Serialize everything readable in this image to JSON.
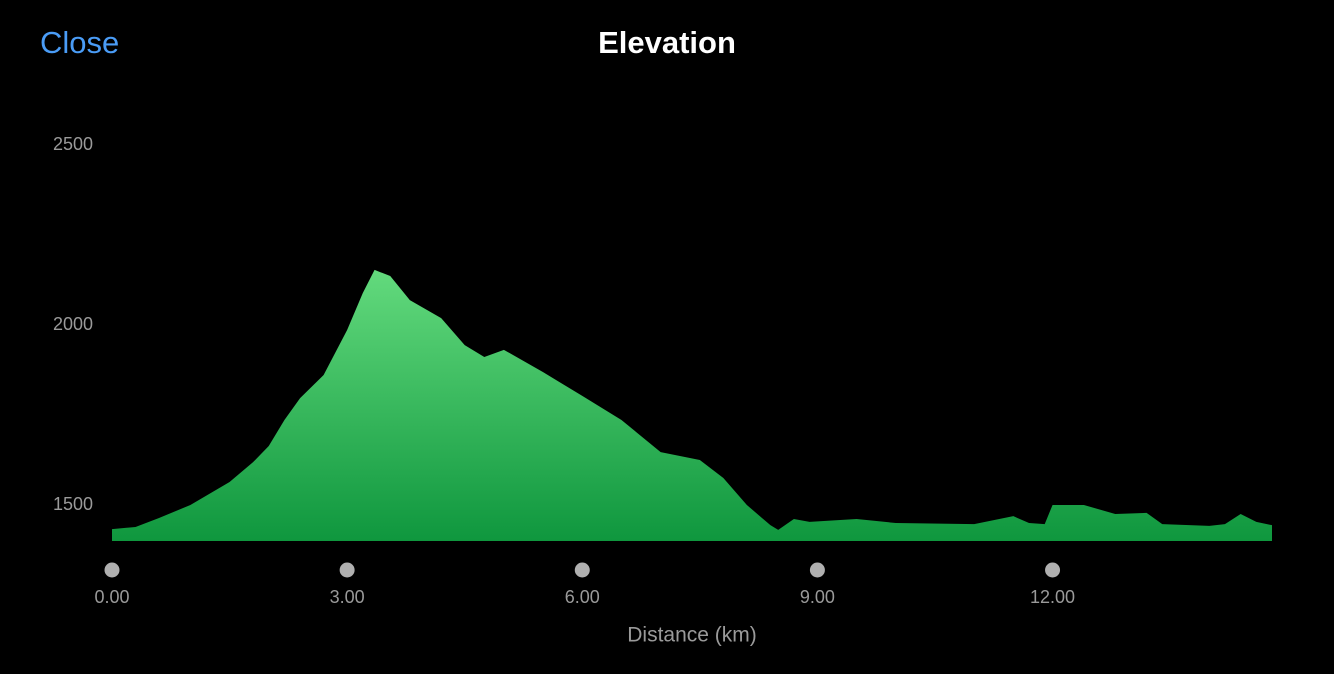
{
  "header": {
    "close": "Close"
  },
  "chart_data": {
    "type": "area",
    "title": "Elevation",
    "x_label": "Distance (km)",
    "x": [
      0,
      0.3,
      0.6,
      1.0,
      1.5,
      1.8,
      2.0,
      2.2,
      2.4,
      2.7,
      3.0,
      3.2,
      3.35,
      3.55,
      3.8,
      4.2,
      4.5,
      4.75,
      5.0,
      5.5,
      6.0,
      6.5,
      7.0,
      7.5,
      7.8,
      8.1,
      8.4,
      8.5,
      8.7,
      8.9,
      9.5,
      10.0,
      11.0,
      11.5,
      11.7,
      11.9,
      12.0,
      12.4,
      12.8,
      13.2,
      13.4,
      14.0,
      14.2,
      14.4,
      14.6,
      14.8
    ],
    "values": [
      1433,
      1439,
      1464,
      1500,
      1564,
      1619,
      1664,
      1736,
      1797,
      1861,
      1986,
      2089,
      2153,
      2136,
      2069,
      2019,
      1944,
      1911,
      1931,
      1869,
      1803,
      1736,
      1647,
      1625,
      1575,
      1500,
      1444,
      1431,
      1461,
      1453,
      1461,
      1450,
      1447,
      1469,
      1450,
      1447,
      1500,
      1500,
      1475,
      1478,
      1447,
      1442,
      1447,
      1475,
      1453,
      1444
    ],
    "gradient": [
      "#63da7d",
      "#0f973e"
    ],
    "xlim": [
      0,
      14.8
    ],
    "ylim": [
      1400,
      2500
    ],
    "xticks": [
      {
        "value": 0,
        "label": "0.00"
      },
      {
        "value": 3,
        "label": "3.00"
      },
      {
        "value": 6,
        "label": "6.00"
      },
      {
        "value": 9,
        "label": "9.00"
      },
      {
        "value": 12,
        "label": "12.00"
      }
    ],
    "yticks": [
      1500,
      2000,
      2500
    ]
  }
}
